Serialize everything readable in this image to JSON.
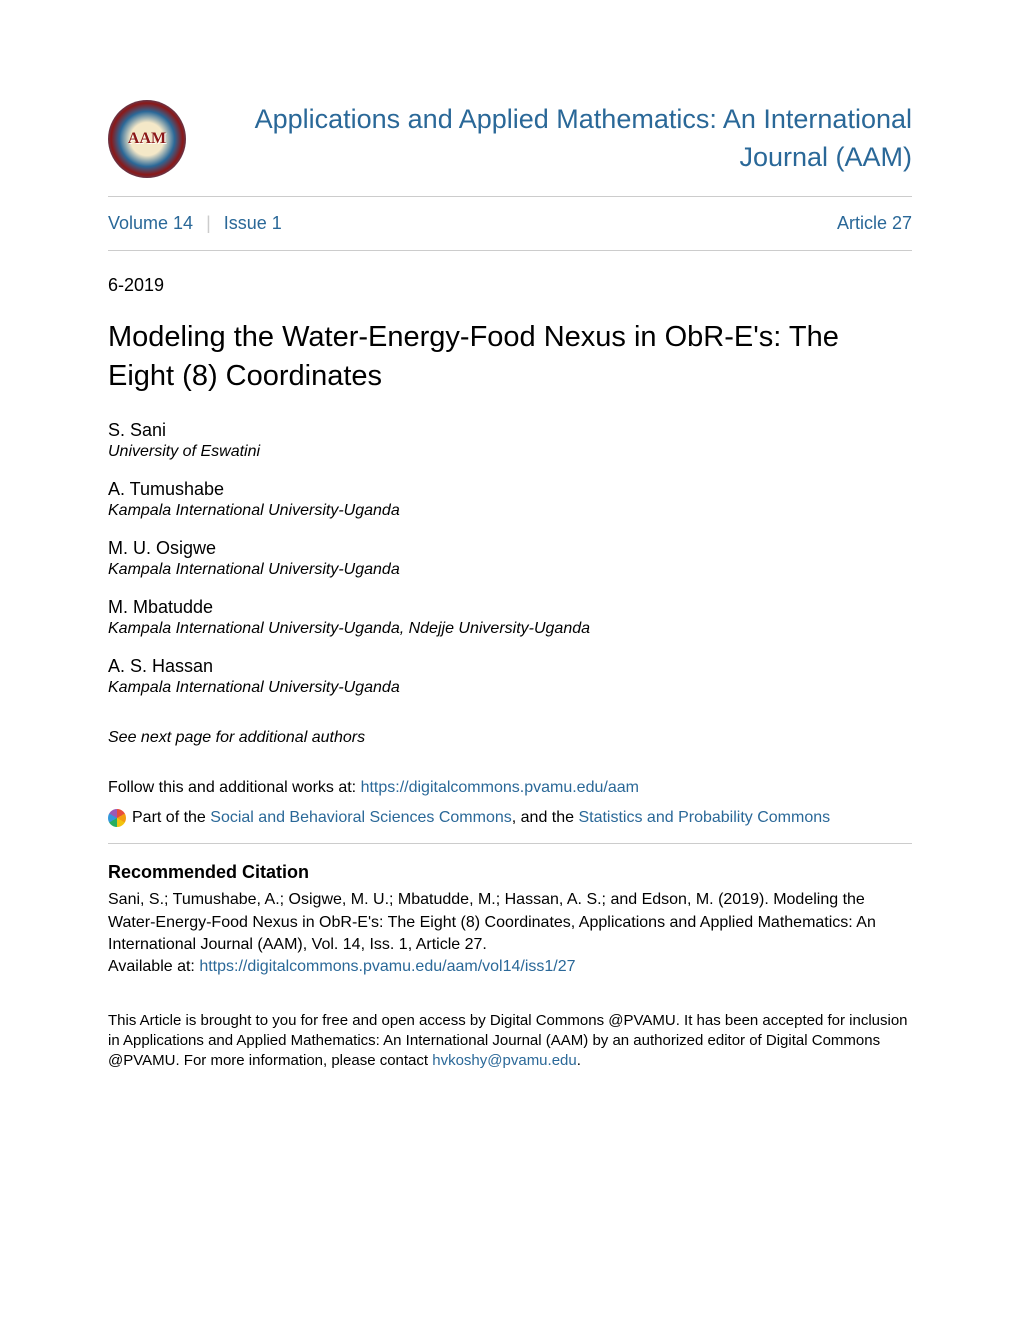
{
  "journal": {
    "title": "Applications and Applied Mathematics: An International Journal (AAM)",
    "logo_text": "AAM"
  },
  "nav": {
    "volume": "Volume 14",
    "issue": "Issue 1",
    "article": "Article 27"
  },
  "article": {
    "date": "6-2019",
    "title": "Modeling the Water-Energy-Food Nexus in ObR-E's: The Eight (8) Coordinates"
  },
  "authors": [
    {
      "name": "S. Sani",
      "affiliation": "University of Eswatini"
    },
    {
      "name": "A. Tumushabe",
      "affiliation": "Kampala International University-Uganda"
    },
    {
      "name": "M. U. Osigwe",
      "affiliation": "Kampala International University-Uganda"
    },
    {
      "name": "M. Mbatudde",
      "affiliation": "Kampala International University-Uganda, Ndejje University-Uganda"
    },
    {
      "name": "A. S. Hassan",
      "affiliation": "Kampala International University-Uganda"
    }
  ],
  "additional_authors_note": "See next page for additional authors",
  "links": {
    "follow_prefix": "Follow this and additional works at: ",
    "follow_url": "https://digitalcommons.pvamu.edu/aam",
    "part_of_prefix": "Part of the ",
    "commons1": "Social and Behavioral Sciences Commons",
    "and_the": ", and the ",
    "commons2": "Statistics and Probability Commons"
  },
  "citation": {
    "heading": "Recommended Citation",
    "text": "Sani, S.; Tumushabe, A.; Osigwe, M. U.; Mbatudde, M.; Hassan, A. S.; and Edson, M. (2019). Modeling the Water-Energy-Food Nexus in ObR-E's: The Eight (8) Coordinates, Applications and Applied Mathematics: An International Journal (AAM), Vol. 14, Iss. 1, Article 27.",
    "available_prefix": "Available at: ",
    "available_url": "https://digitalcommons.pvamu.edu/aam/vol14/iss1/27"
  },
  "footer": {
    "text_before": "This Article is brought to you for free and open access by Digital Commons @PVAMU. It has been accepted for inclusion in Applications and Applied Mathematics: An International Journal (AAM) by an authorized editor of Digital Commons @PVAMU. For more information, please contact ",
    "email": "hvkoshy@pvamu.edu",
    "text_after": "."
  },
  "colors": {
    "link": "#2a6898",
    "text": "#000000",
    "divider": "#cccccc",
    "background": "#ffffff"
  }
}
